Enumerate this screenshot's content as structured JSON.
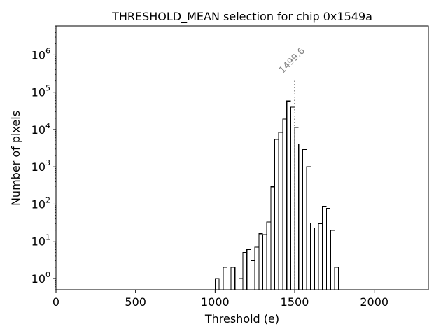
{
  "chart_data": {
    "type": "histogram",
    "title": "THRESHOLD_MEAN selection for chip 0x1549a",
    "xlabel": "Threshold (e)",
    "ylabel": "Number of pixels",
    "xlim": [
      0,
      2340
    ],
    "ylim": [
      0.5,
      6000000
    ],
    "yscale": "log",
    "bin_width": 25,
    "x_ticks": [
      0,
      500,
      1000,
      1500,
      2000
    ],
    "x_tick_labels": [
      "0",
      "500",
      "1000",
      "1500",
      "2000"
    ],
    "y_ticks": [
      1,
      10,
      100,
      1000,
      10000,
      100000,
      1000000
    ],
    "y_tick_labels": [
      {
        "base": "10",
        "exp": "0"
      },
      {
        "base": "10",
        "exp": "1"
      },
      {
        "base": "10",
        "exp": "2"
      },
      {
        "base": "10",
        "exp": "3"
      },
      {
        "base": "10",
        "exp": "4"
      },
      {
        "base": "10",
        "exp": "5"
      },
      {
        "base": "10",
        "exp": "6"
      }
    ],
    "bins": [
      {
        "x0": 1000,
        "x1": 1025,
        "count": 1
      },
      {
        "x0": 1025,
        "x1": 1050,
        "count": 0
      },
      {
        "x0": 1050,
        "x1": 1075,
        "count": 2
      },
      {
        "x0": 1075,
        "x1": 1100,
        "count": 0
      },
      {
        "x0": 1100,
        "x1": 1125,
        "count": 2
      },
      {
        "x0": 1125,
        "x1": 1150,
        "count": 0
      },
      {
        "x0": 1150,
        "x1": 1175,
        "count": 1
      },
      {
        "x0": 1175,
        "x1": 1200,
        "count": 5
      },
      {
        "x0": 1200,
        "x1": 1225,
        "count": 6
      },
      {
        "x0": 1225,
        "x1": 1250,
        "count": 3
      },
      {
        "x0": 1250,
        "x1": 1275,
        "count": 7
      },
      {
        "x0": 1275,
        "x1": 1300,
        "count": 16
      },
      {
        "x0": 1300,
        "x1": 1325,
        "count": 15
      },
      {
        "x0": 1325,
        "x1": 1350,
        "count": 33
      },
      {
        "x0": 1350,
        "x1": 1375,
        "count": 290
      },
      {
        "x0": 1375,
        "x1": 1400,
        "count": 5500
      },
      {
        "x0": 1400,
        "x1": 1425,
        "count": 8500
      },
      {
        "x0": 1425,
        "x1": 1450,
        "count": 19000
      },
      {
        "x0": 1450,
        "x1": 1475,
        "count": 58000
      },
      {
        "x0": 1475,
        "x1": 1500,
        "count": 40000
      },
      {
        "x0": 1500,
        "x1": 1525,
        "count": 11500
      },
      {
        "x0": 1525,
        "x1": 1550,
        "count": 4100
      },
      {
        "x0": 1550,
        "x1": 1575,
        "count": 2900
      },
      {
        "x0": 1575,
        "x1": 1600,
        "count": 1000
      },
      {
        "x0": 1600,
        "x1": 1625,
        "count": 31
      },
      {
        "x0": 1625,
        "x1": 1650,
        "count": 23
      },
      {
        "x0": 1650,
        "x1": 1675,
        "count": 30
      },
      {
        "x0": 1675,
        "x1": 1700,
        "count": 87
      },
      {
        "x0": 1700,
        "x1": 1725,
        "count": 77
      },
      {
        "x0": 1725,
        "x1": 1750,
        "count": 20
      },
      {
        "x0": 1750,
        "x1": 1775,
        "count": 2
      },
      {
        "x0": 1775,
        "x1": 1800,
        "count": 0
      },
      {
        "x0": 1800,
        "x1": 1825,
        "count": 0
      }
    ],
    "annotations": [
      {
        "text": "1499.6",
        "x": 1499.6,
        "line_top": 220000,
        "style": "dotted",
        "color": "#808080"
      }
    ],
    "grid": false,
    "line_color": "#000000"
  }
}
